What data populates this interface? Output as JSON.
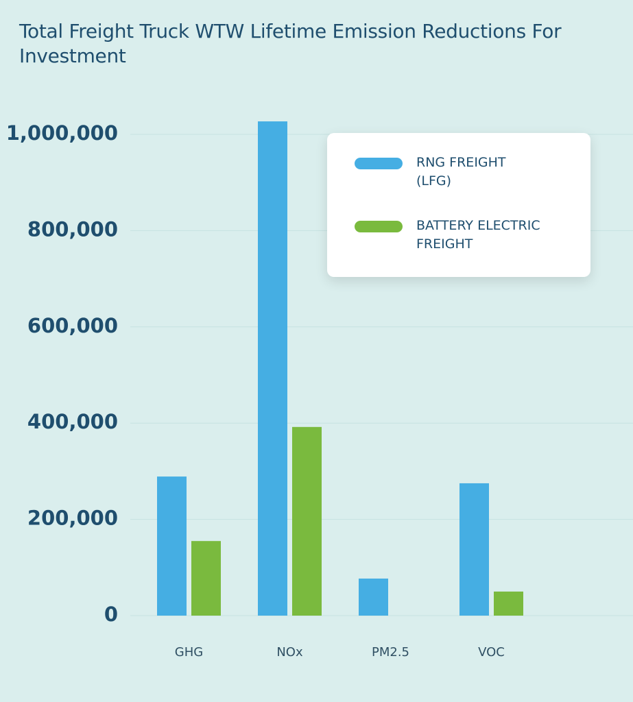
{
  "chart_data": {
    "type": "bar",
    "title": "Total Freight Truck WTW Lifetime Emission Reductions For Investment",
    "categories": [
      "GHG",
      "NOx",
      "PM2.5",
      "VOC"
    ],
    "series": [
      {
        "name": "RNG FREIGHT\n(LFG)",
        "color": "#45aee3",
        "values": [
          289000,
          1027000,
          77000,
          275000
        ]
      },
      {
        "name": "BATTERY ELECTRIC\nFREIGHT",
        "color": "#7aba3e",
        "values": [
          155000,
          392000,
          0,
          50000
        ]
      }
    ],
    "ylim": [
      0,
      1050000
    ],
    "yticks": [
      {
        "value": 0,
        "label": "0"
      },
      {
        "value": 200000,
        "label": "200,000"
      },
      {
        "value": 400000,
        "label": "400,000"
      },
      {
        "value": 600000,
        "label": "600,000"
      },
      {
        "value": 800000,
        "label": "800,000"
      },
      {
        "value": 1000000,
        "label": "1,000,000"
      }
    ],
    "grid": true
  }
}
